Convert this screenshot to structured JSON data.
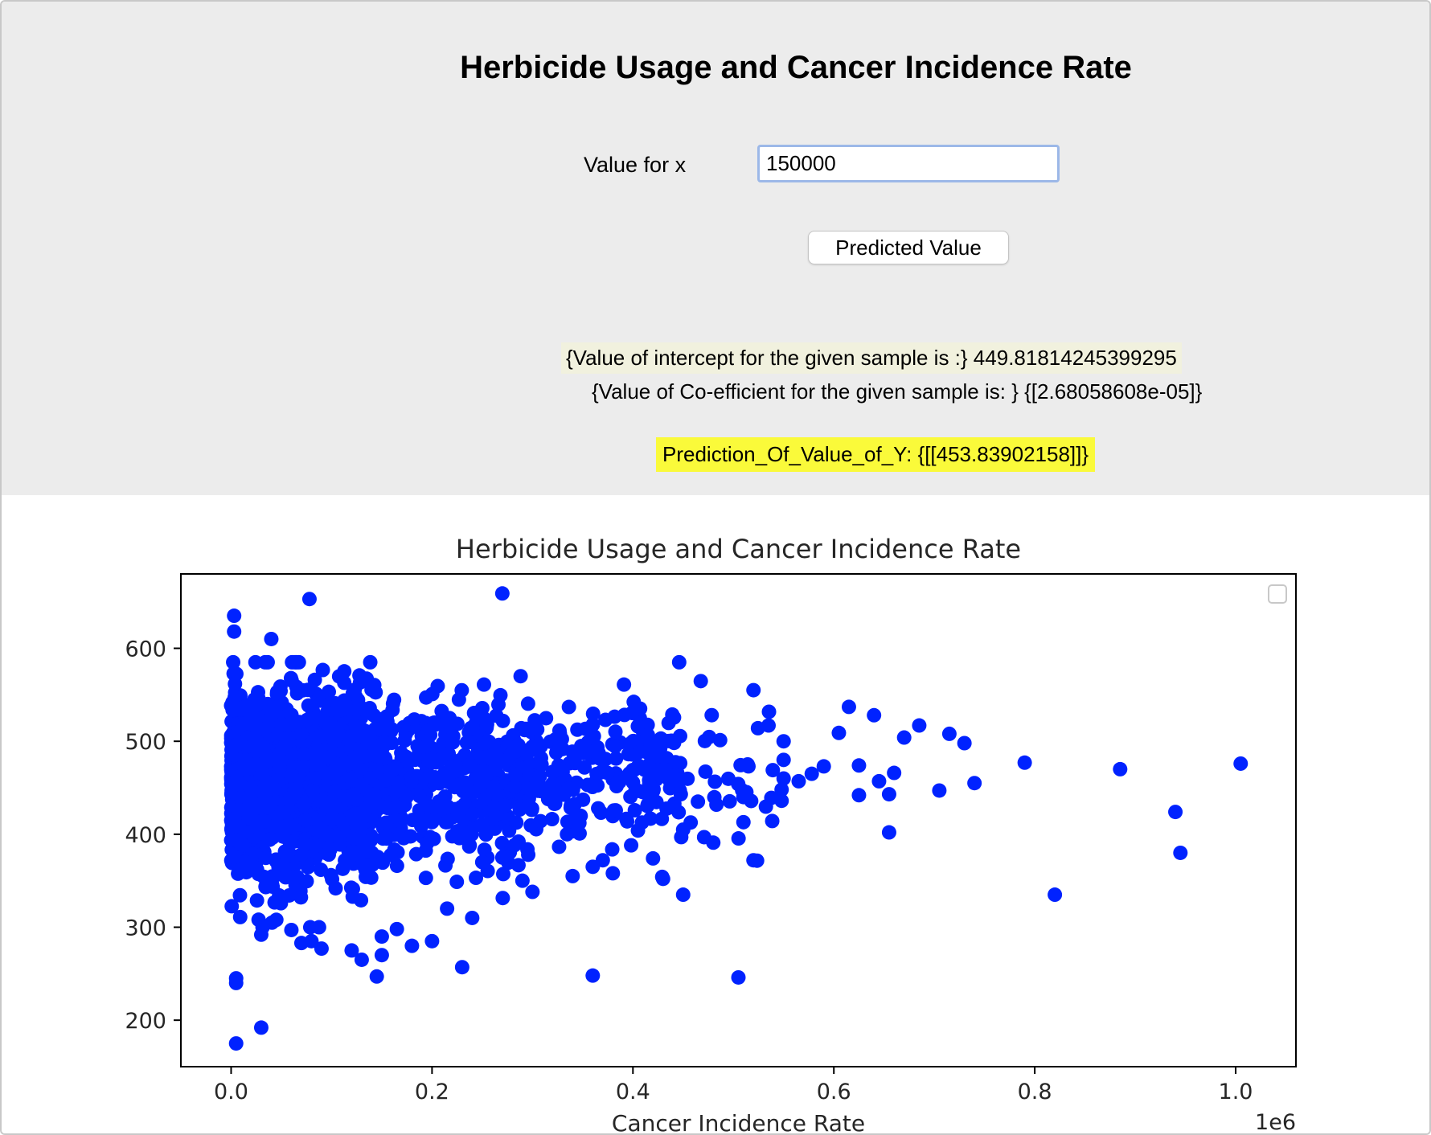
{
  "app": {
    "title": "Herbicide Usage and Cancer Incidence Rate"
  },
  "form": {
    "x_label": "Value for x",
    "x_value": "150000",
    "predict_button": "Predicted Value"
  },
  "results": {
    "intercept": "{Value of intercept for the given sample is :} 449.81814245399295",
    "coefficient": "{Value of Co-efficient for the given sample is: } {[2.68058608e-05]}",
    "prediction": "Prediction_Of_Value_of_Y: {[[453.83902158]]}"
  },
  "colors": {
    "points": "#0022ff",
    "prediction_highlight": "#fafa3a",
    "intercept_highlight": "#f1f1de"
  },
  "chart_data": {
    "type": "scatter",
    "title": "Herbicide Usage and Cancer Incidence Rate",
    "xlabel": "Cancer Incidence Rate",
    "ylabel": "",
    "x_offset_label": "1e6",
    "xlim": [
      -0.05,
      1.06
    ],
    "ylim": [
      150,
      680
    ],
    "x_ticks": [
      0.0,
      0.2,
      0.4,
      0.6,
      0.8,
      1.0
    ],
    "x_tick_labels": [
      "0.0",
      "0.2",
      "0.4",
      "0.6",
      "0.8",
      "1.0"
    ],
    "y_ticks": [
      200,
      300,
      400,
      500,
      600
    ],
    "y_tick_labels": [
      "200",
      "300",
      "400",
      "500",
      "600"
    ],
    "grid": false,
    "legend": "top-right (empty)",
    "series": [
      {
        "color": "#0022ff",
        "points": [
          [
            0.003,
            635
          ],
          [
            0.003,
            618
          ],
          [
            0.078,
            653
          ],
          [
            0.27,
            659
          ],
          [
            0.04,
            610
          ],
          [
            0.005,
            245
          ],
          [
            0.005,
            240
          ],
          [
            0.005,
            175
          ],
          [
            0.03,
            192
          ],
          [
            0.36,
            248
          ],
          [
            0.505,
            246
          ],
          [
            0.23,
            257
          ],
          [
            0.145,
            247
          ],
          [
            0.82,
            335
          ],
          [
            0.945,
            380
          ],
          [
            0.94,
            424
          ],
          [
            0.885,
            470
          ],
          [
            0.79,
            477
          ],
          [
            1.005,
            476
          ],
          [
            0.74,
            455
          ],
          [
            0.705,
            447
          ],
          [
            0.73,
            498
          ],
          [
            0.715,
            508
          ],
          [
            0.685,
            517
          ],
          [
            0.67,
            504
          ],
          [
            0.64,
            528
          ],
          [
            0.615,
            537
          ],
          [
            0.605,
            509
          ],
          [
            0.655,
            402
          ],
          [
            0.655,
            443
          ],
          [
            0.66,
            466
          ],
          [
            0.645,
            457
          ],
          [
            0.625,
            474
          ],
          [
            0.625,
            442
          ],
          [
            0.59,
            473
          ],
          [
            0.578,
            465
          ],
          [
            0.565,
            457
          ],
          [
            0.55,
            460
          ],
          [
            0.548,
            448
          ],
          [
            0.548,
            436
          ],
          [
            0.55,
            480
          ],
          [
            0.55,
            500
          ],
          [
            0.535,
            517
          ],
          [
            0.52,
            555
          ],
          [
            0.515,
            473
          ],
          [
            0.51,
            440
          ],
          [
            0.51,
            413
          ],
          [
            0.52,
            372
          ],
          [
            0.48,
            391
          ],
          [
            0.45,
            335
          ],
          [
            0.45,
            405
          ],
          [
            0.43,
            352
          ],
          [
            0.42,
            374
          ],
          [
            0.405,
            404
          ],
          [
            0.37,
            372
          ],
          [
            0.38,
            358
          ],
          [
            0.36,
            365
          ],
          [
            0.34,
            355
          ],
          [
            0.3,
            338
          ],
          [
            0.29,
            350
          ],
          [
            0.27,
            375
          ],
          [
            0.25,
            370
          ],
          [
            0.24,
            310
          ],
          [
            0.215,
            320
          ],
          [
            0.2,
            285
          ],
          [
            0.18,
            280
          ],
          [
            0.165,
            298
          ],
          [
            0.15,
            290
          ],
          [
            0.15,
            270
          ],
          [
            0.13,
            265
          ],
          [
            0.12,
            275
          ],
          [
            0.09,
            277
          ],
          [
            0.08,
            285
          ],
          [
            0.07,
            283
          ],
          [
            0.06,
            297
          ],
          [
            0.045,
            308
          ],
          [
            0.03,
            292
          ]
        ]
      }
    ]
  }
}
